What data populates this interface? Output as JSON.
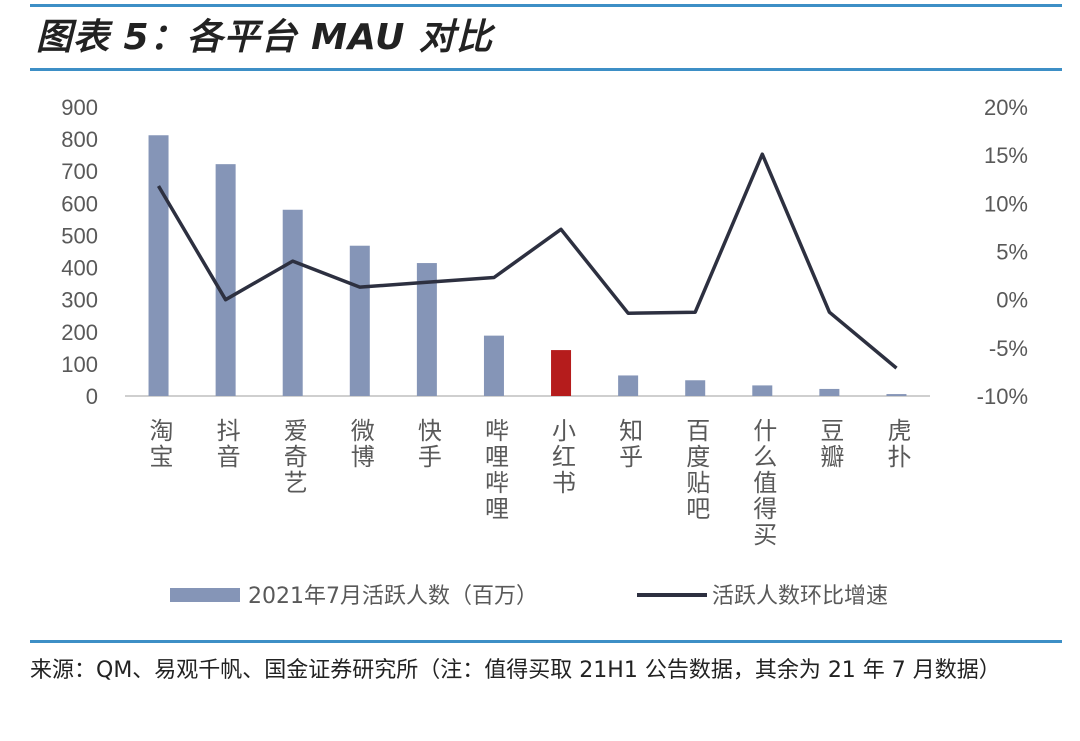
{
  "title": "图表 5：各平台 MAU 对比",
  "source_note": "来源：QM、易观千帆、国金证券研究所（注：值得买取 21H1 公告数据，其余为 21 年 7 月数据）",
  "colors": {
    "bar": "#8595b7",
    "bar_highlight": "#b51c1c",
    "line": "#2d3040",
    "rule": "#3d8fc6",
    "axis_text": "#595959"
  },
  "chart_data": {
    "type": "bar+line",
    "categories": [
      "淘宝",
      "抖音",
      "爱奇艺",
      "微博",
      "快手",
      "哔哩哔哩",
      "小红书",
      "知乎",
      "百度贴吧",
      "什么值得买",
      "豆瓣",
      "虎扑"
    ],
    "series": [
      {
        "name": "2021年7月活跃人数（百万）",
        "type": "bar",
        "axis": "left",
        "values": [
          812,
          722,
          580,
          468,
          414,
          188,
          143,
          64,
          49,
          33,
          22,
          6
        ],
        "highlight_index": 6
      },
      {
        "name": "活跃人数环比增速",
        "type": "line",
        "axis": "right",
        "values": [
          11.8,
          0.0,
          4.0,
          1.3,
          1.8,
          2.3,
          7.3,
          -1.4,
          -1.3,
          15.1,
          -1.3,
          -7.1
        ]
      }
    ],
    "left_axis": {
      "min": 0,
      "max": 900,
      "ticks": [
        "0",
        "100",
        "200",
        "300",
        "400",
        "500",
        "600",
        "700",
        "800",
        "900"
      ]
    },
    "right_axis": {
      "min": -10,
      "max": 20,
      "ticks": [
        "-10%",
        "-5%",
        "0%",
        "5%",
        "10%",
        "15%",
        "20%"
      ]
    },
    "legend": {
      "position": "bottom"
    },
    "grid": false
  }
}
